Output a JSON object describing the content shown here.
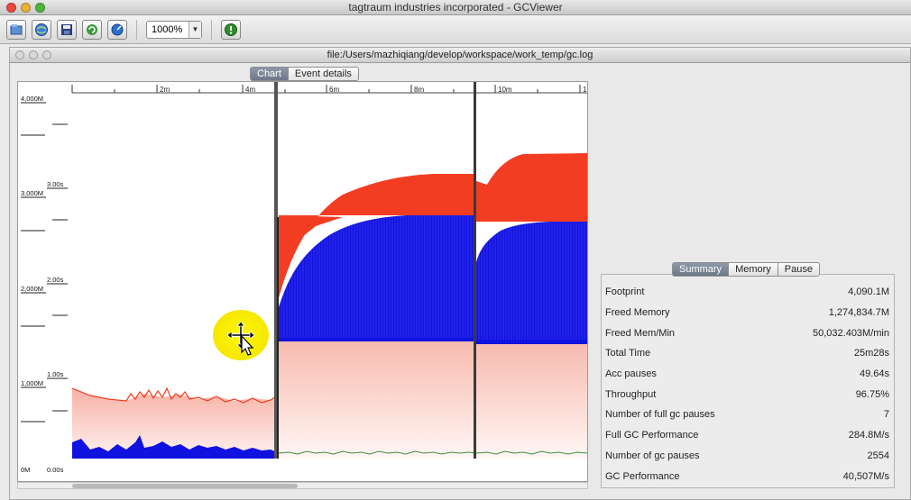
{
  "app": {
    "title": "tagtraum industries incorporated - GCViewer"
  },
  "toolbar": {
    "icons": [
      "open-file-icon",
      "open-url-icon",
      "save-icon",
      "refresh-icon",
      "watch-icon",
      "info-icon"
    ],
    "zoom_value": "1000%"
  },
  "document": {
    "title": "file:/Users/mazhiqiang/develop/workspace/work_temp/gc.log",
    "tabs": [
      {
        "label": "Chart",
        "active": true
      },
      {
        "label": "Event details",
        "active": false
      }
    ]
  },
  "chart": {
    "top_ticks": [
      "2m",
      "4m",
      "6m",
      "8m",
      "10m",
      "1"
    ],
    "left_labels": [
      "4,000M",
      "3,000M",
      "2,000M",
      "1,000M",
      "0M"
    ],
    "pause_labels": [
      "3.00s",
      "2.00s",
      "1.00s",
      "0.00s"
    ]
  },
  "summary": {
    "tabs": [
      {
        "label": "Summary",
        "active": true
      },
      {
        "label": "Memory",
        "active": false
      },
      {
        "label": "Pause",
        "active": false
      }
    ],
    "rows": [
      {
        "label": "Footprint",
        "value": "4,090.1M"
      },
      {
        "label": "Freed Memory",
        "value": "1,274,834.7M"
      },
      {
        "label": "Freed Mem/Min",
        "value": "50,032.403M/min"
      },
      {
        "label": "Total Time",
        "value": "25m28s"
      },
      {
        "label": "Acc pauses",
        "value": "49.64s"
      },
      {
        "label": "Throughput",
        "value": "96.75%"
      },
      {
        "label": "Number of full gc pauses",
        "value": "7"
      },
      {
        "label": "Full GC Performance",
        "value": "284.8M/s"
      },
      {
        "label": "Number of gc pauses",
        "value": "2554"
      },
      {
        "label": "GC Performance",
        "value": "40,507M/s"
      }
    ]
  },
  "colors": {
    "total_heap": "#f23a1e",
    "used_heap": "#1016e0",
    "heap_fill_top": "#f7b5a8",
    "full_gc_line": "#444444",
    "gc_pause_line": "#2e8a2e",
    "active_tab": "#7a8494"
  }
}
